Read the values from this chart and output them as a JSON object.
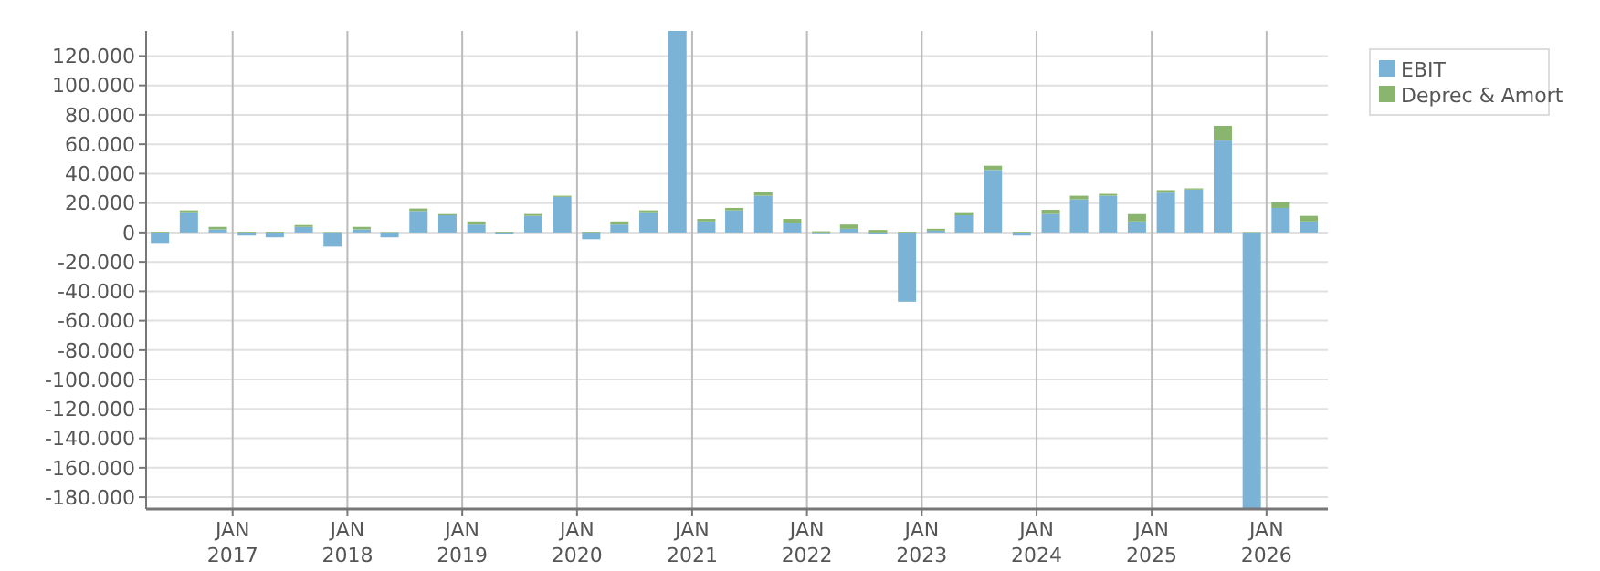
{
  "chart_data": {
    "type": "bar",
    "stacked": true,
    "x": [
      "2016-05-15",
      "2016-08-15",
      "2016-11-15",
      "2017-02-15",
      "2017-05-15",
      "2017-08-15",
      "2017-11-15",
      "2018-02-15",
      "2018-05-15",
      "2018-08-15",
      "2018-11-15",
      "2019-02-15",
      "2019-05-15",
      "2019-08-15",
      "2019-11-15",
      "2020-02-15",
      "2020-05-15",
      "2020-08-15",
      "2020-11-15",
      "2021-02-15",
      "2021-05-15",
      "2021-08-15",
      "2021-11-15",
      "2022-02-15",
      "2022-05-15",
      "2022-08-15",
      "2022-11-15",
      "2023-02-15",
      "2023-05-15",
      "2023-08-15",
      "2023-11-15",
      "2024-02-15",
      "2024-05-15",
      "2024-08-15",
      "2024-11-15",
      "2025-02-15",
      "2025-05-15",
      "2025-08-15",
      "2025-11-15",
      "2026-02-15",
      "2026-05-15"
    ],
    "series": [
      {
        "name": "EBIT",
        "color": "#7ab3d6",
        "values": [
          -7100,
          13800,
          2100,
          -2100,
          -3300,
          3800,
          -9600,
          2100,
          -3300,
          14600,
          11700,
          5400,
          -800,
          11300,
          24200,
          -4600,
          5400,
          13800,
          137000,
          7500,
          15000,
          25000,
          6700,
          -500,
          2500,
          -800,
          -47100,
          1250,
          11700,
          42500,
          -2100,
          12500,
          22500,
          25000,
          7500,
          27100,
          29200,
          62500,
          -188000,
          16700,
          7500
        ]
      },
      {
        "name": "Deprec & Amort",
        "color": "#8ab56e",
        "values": [
          500,
          1250,
          1700,
          500,
          500,
          1250,
          300,
          1700,
          300,
          1700,
          800,
          2100,
          500,
          1250,
          800,
          500,
          2100,
          1250,
          0,
          1700,
          1700,
          2500,
          2500,
          800,
          2900,
          1700,
          500,
          1250,
          2100,
          2900,
          500,
          2900,
          2500,
          1250,
          5000,
          1700,
          800,
          10000,
          300,
          3800,
          3800
        ]
      }
    ],
    "xlim": [
      "2016-04-01",
      "2026-07-15"
    ],
    "xticks": [
      {
        "value": "2017-01-01",
        "label": "JAN\n2017"
      },
      {
        "value": "2018-01-01",
        "label": "JAN\n2018"
      },
      {
        "value": "2019-01-01",
        "label": "JAN\n2019"
      },
      {
        "value": "2020-01-01",
        "label": "JAN\n2020"
      },
      {
        "value": "2021-01-01",
        "label": "JAN\n2021"
      },
      {
        "value": "2022-01-01",
        "label": "JAN\n2022"
      },
      {
        "value": "2023-01-01",
        "label": "JAN\n2023"
      },
      {
        "value": "2024-01-01",
        "label": "JAN\n2024"
      },
      {
        "value": "2025-01-01",
        "label": "JAN\n2025"
      },
      {
        "value": "2026-01-01",
        "label": "JAN\n2026"
      }
    ],
    "ylim": [
      -188000,
      137000
    ],
    "yticks": [
      {
        "value": -180000,
        "label": "-180.000"
      },
      {
        "value": -160000,
        "label": "-160.000"
      },
      {
        "value": -140000,
        "label": "-140.000"
      },
      {
        "value": -120000,
        "label": "-120.000"
      },
      {
        "value": -100000,
        "label": "-100.000"
      },
      {
        "value": -80000,
        "label": "-80.000"
      },
      {
        "value": -60000,
        "label": "-60.000"
      },
      {
        "value": -40000,
        "label": "-40.000"
      },
      {
        "value": -20000,
        "label": "-20.000"
      },
      {
        "value": 0,
        "label": "0"
      },
      {
        "value": 20000,
        "label": "20.000"
      },
      {
        "value": 40000,
        "label": "40.000"
      },
      {
        "value": 60000,
        "label": "60.000"
      },
      {
        "value": 80000,
        "label": "80.000"
      },
      {
        "value": 100000,
        "label": "100.000"
      },
      {
        "value": 120000,
        "label": "120.000"
      }
    ],
    "grid": true,
    "legend": "top right"
  }
}
